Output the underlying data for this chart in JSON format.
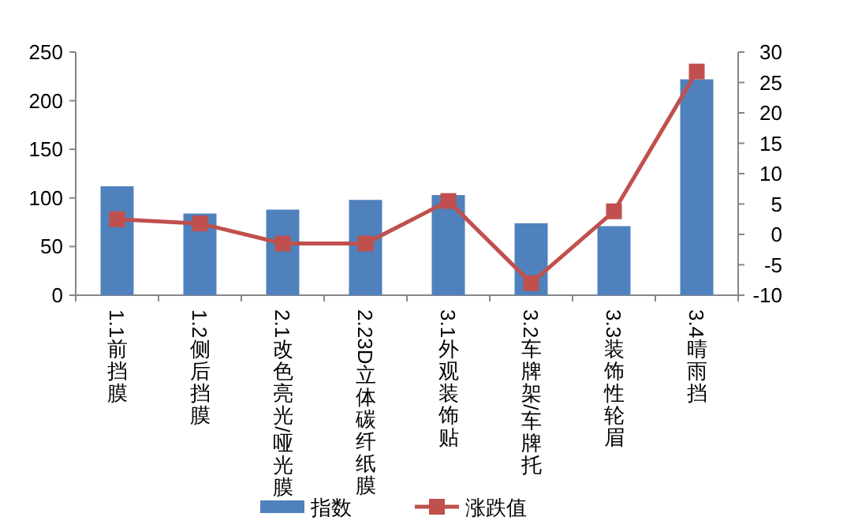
{
  "chart_data": {
    "type": "bar",
    "categories": [
      "1.1前挡膜",
      "1.2侧后挡膜",
      "2.1改色亮光/哑光膜",
      "2.23D立体碳纤纸膜",
      "3.1外观装饰贴",
      "3.2车牌架/车牌托",
      "3.3装饰性轮眉",
      "3.4晴雨挡"
    ],
    "series": [
      {
        "name": "指数",
        "color": "#4f81bd",
        "values": [
          112,
          84,
          88,
          98,
          103,
          74,
          71,
          222
        ]
      },
      {
        "name": "涨跌值",
        "type": "line",
        "axis": "y2",
        "color": "#c0504d",
        "marker": "square",
        "values": [
          2.5,
          1.8,
          -1.5,
          -1.5,
          5.5,
          -8,
          3.8,
          26.8
        ]
      }
    ],
    "ylim": [
      0,
      250
    ],
    "yticks": [
      0,
      50,
      100,
      150,
      200,
      250
    ],
    "y2lim": [
      -10,
      30
    ],
    "y2ticks": [
      -10,
      -5,
      0,
      5,
      10,
      15,
      20,
      25,
      30
    ],
    "legend": "bottom",
    "grid": false
  }
}
